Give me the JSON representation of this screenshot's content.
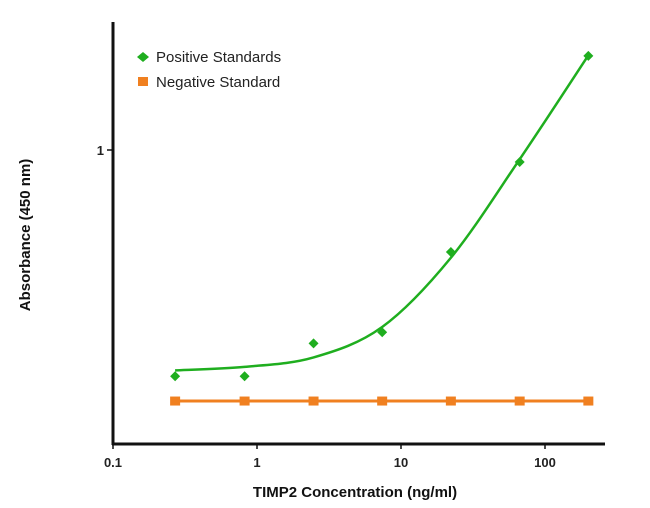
{
  "chart_data": {
    "type": "scatter",
    "title": "",
    "xlabel": "TIMP2 Concentration (ng/ml)",
    "ylabel": "Absorbance (450 nm)",
    "xscale": "log",
    "yscale": "log",
    "xlim": [
      0.1,
      300
    ],
    "ylim": [
      0.1,
      2.7
    ],
    "x_ticks": [
      {
        "value": 0.1,
        "label": "0.1"
      },
      {
        "value": 1,
        "label": "1"
      },
      {
        "value": 10,
        "label": "10"
      },
      {
        "value": 100,
        "label": "100"
      }
    ],
    "y_ticks": [
      {
        "value": 1,
        "label": "1"
      }
    ],
    "legend_position": "top-left",
    "x": [
      0.27,
      0.82,
      2.47,
      7.4,
      22.2,
      66.7,
      200
    ],
    "series": [
      {
        "name": "Positive Standards",
        "color": "#1fae1f",
        "marker": "diamond",
        "values": [
          0.17,
          0.17,
          0.22,
          0.24,
          0.45,
          0.91,
          2.09
        ],
        "fit_curve": [
          0.178,
          0.183,
          0.197,
          0.25,
          0.43,
          0.93,
          2.1
        ]
      },
      {
        "name": "Negative Standard",
        "color": "#f08020",
        "marker": "square",
        "values": [
          0.14,
          0.14,
          0.14,
          0.14,
          0.14,
          0.14,
          0.14
        ]
      }
    ]
  }
}
